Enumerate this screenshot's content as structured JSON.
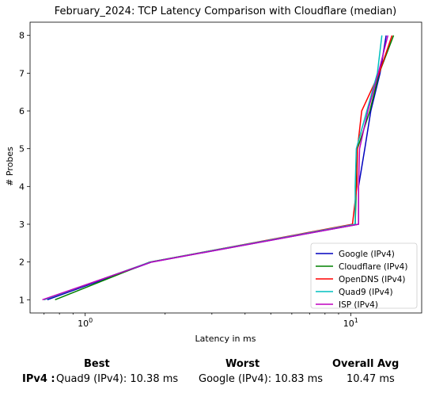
{
  "chart_data": {
    "type": "line",
    "title": "February_2024: TCP Latency Comparison with Cloudflare (median)",
    "xlabel": "Latency in ms",
    "ylabel": "# Probes",
    "xscale": "log",
    "xlim": [
      0.62,
      18.5
    ],
    "ylim": [
      0.65,
      8.35
    ],
    "x_ticks": [
      {
        "value": 1,
        "label": "10^0"
      },
      {
        "value": 10,
        "label": "10^1"
      }
    ],
    "y_ticks": [
      1,
      2,
      3,
      4,
      5,
      6,
      7,
      8
    ],
    "grid": false,
    "legend_position": "lower-right",
    "series": [
      {
        "name": "Google (IPv4)",
        "color": "#0000bf",
        "x": [
          0.72,
          1.78,
          10.7,
          10.7,
          11.3,
          11.9,
          12.9,
          13.6
        ],
        "y": [
          1,
          2,
          3,
          4,
          5,
          6,
          7,
          8
        ]
      },
      {
        "name": "Cloudflare (IPv4)",
        "color": "#008000",
        "x": [
          0.77,
          1.75,
          10.4,
          10.5,
          10.6,
          11.8,
          12.8,
          14.5
        ],
        "y": [
          1,
          2,
          3,
          4,
          5,
          6,
          7,
          8
        ]
      },
      {
        "name": "OpenDNS (IPv4)",
        "color": "#ff0000",
        "x": [
          0.7,
          1.76,
          10.15,
          10.55,
          10.6,
          11.0,
          12.8,
          14.3
        ],
        "y": [
          1,
          2,
          3,
          4,
          5,
          6,
          7,
          8
        ]
      },
      {
        "name": "Quad9 (IPv4)",
        "color": "#00bfbf",
        "x": [
          0.7,
          1.76,
          10.4,
          10.4,
          10.5,
          11.5,
          12.6,
          13.1
        ],
        "y": [
          1,
          2,
          3,
          4,
          5,
          6,
          7,
          8
        ]
      },
      {
        "name": "ISP (IPv4)",
        "color": "#bf00bf",
        "x": [
          0.69,
          1.78,
          10.7,
          10.7,
          10.8,
          11.6,
          12.7,
          13.8
        ],
        "y": [
          1,
          2,
          3,
          4,
          5,
          6,
          7,
          8
        ]
      }
    ]
  },
  "stats": {
    "best_header": "Best",
    "worst_header": "Worst",
    "avg_header": "Overall Avg",
    "row_label": "IPv4 :",
    "best_value": "Quad9 (IPv4): 10.38 ms",
    "worst_value": "Google (IPv4): 10.83 ms",
    "avg_value": "10.47 ms"
  }
}
